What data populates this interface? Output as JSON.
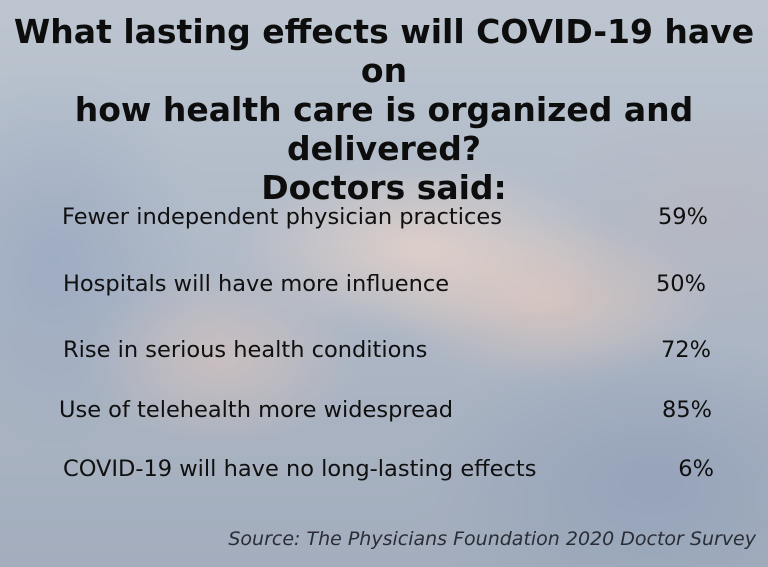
{
  "title": {
    "line1": "What lasting effects will COVID-19 have on",
    "line2": "how health care is organized and delivered?",
    "line3": "Doctors said:"
  },
  "responses": [
    {
      "label": "Fewer independent physician practices",
      "value": "59%"
    },
    {
      "label": "Hospitals will have more influence",
      "value": "50%"
    },
    {
      "label": "Rise in serious health conditions",
      "value": "72%"
    },
    {
      "label": "Use of telehealth more widespread",
      "value": "85%"
    },
    {
      "label": "COVID-19 will have no long-lasting effects",
      "value": "6%"
    }
  ],
  "source": "Source: The Physicians Foundation 2020 Doctor Survey"
}
